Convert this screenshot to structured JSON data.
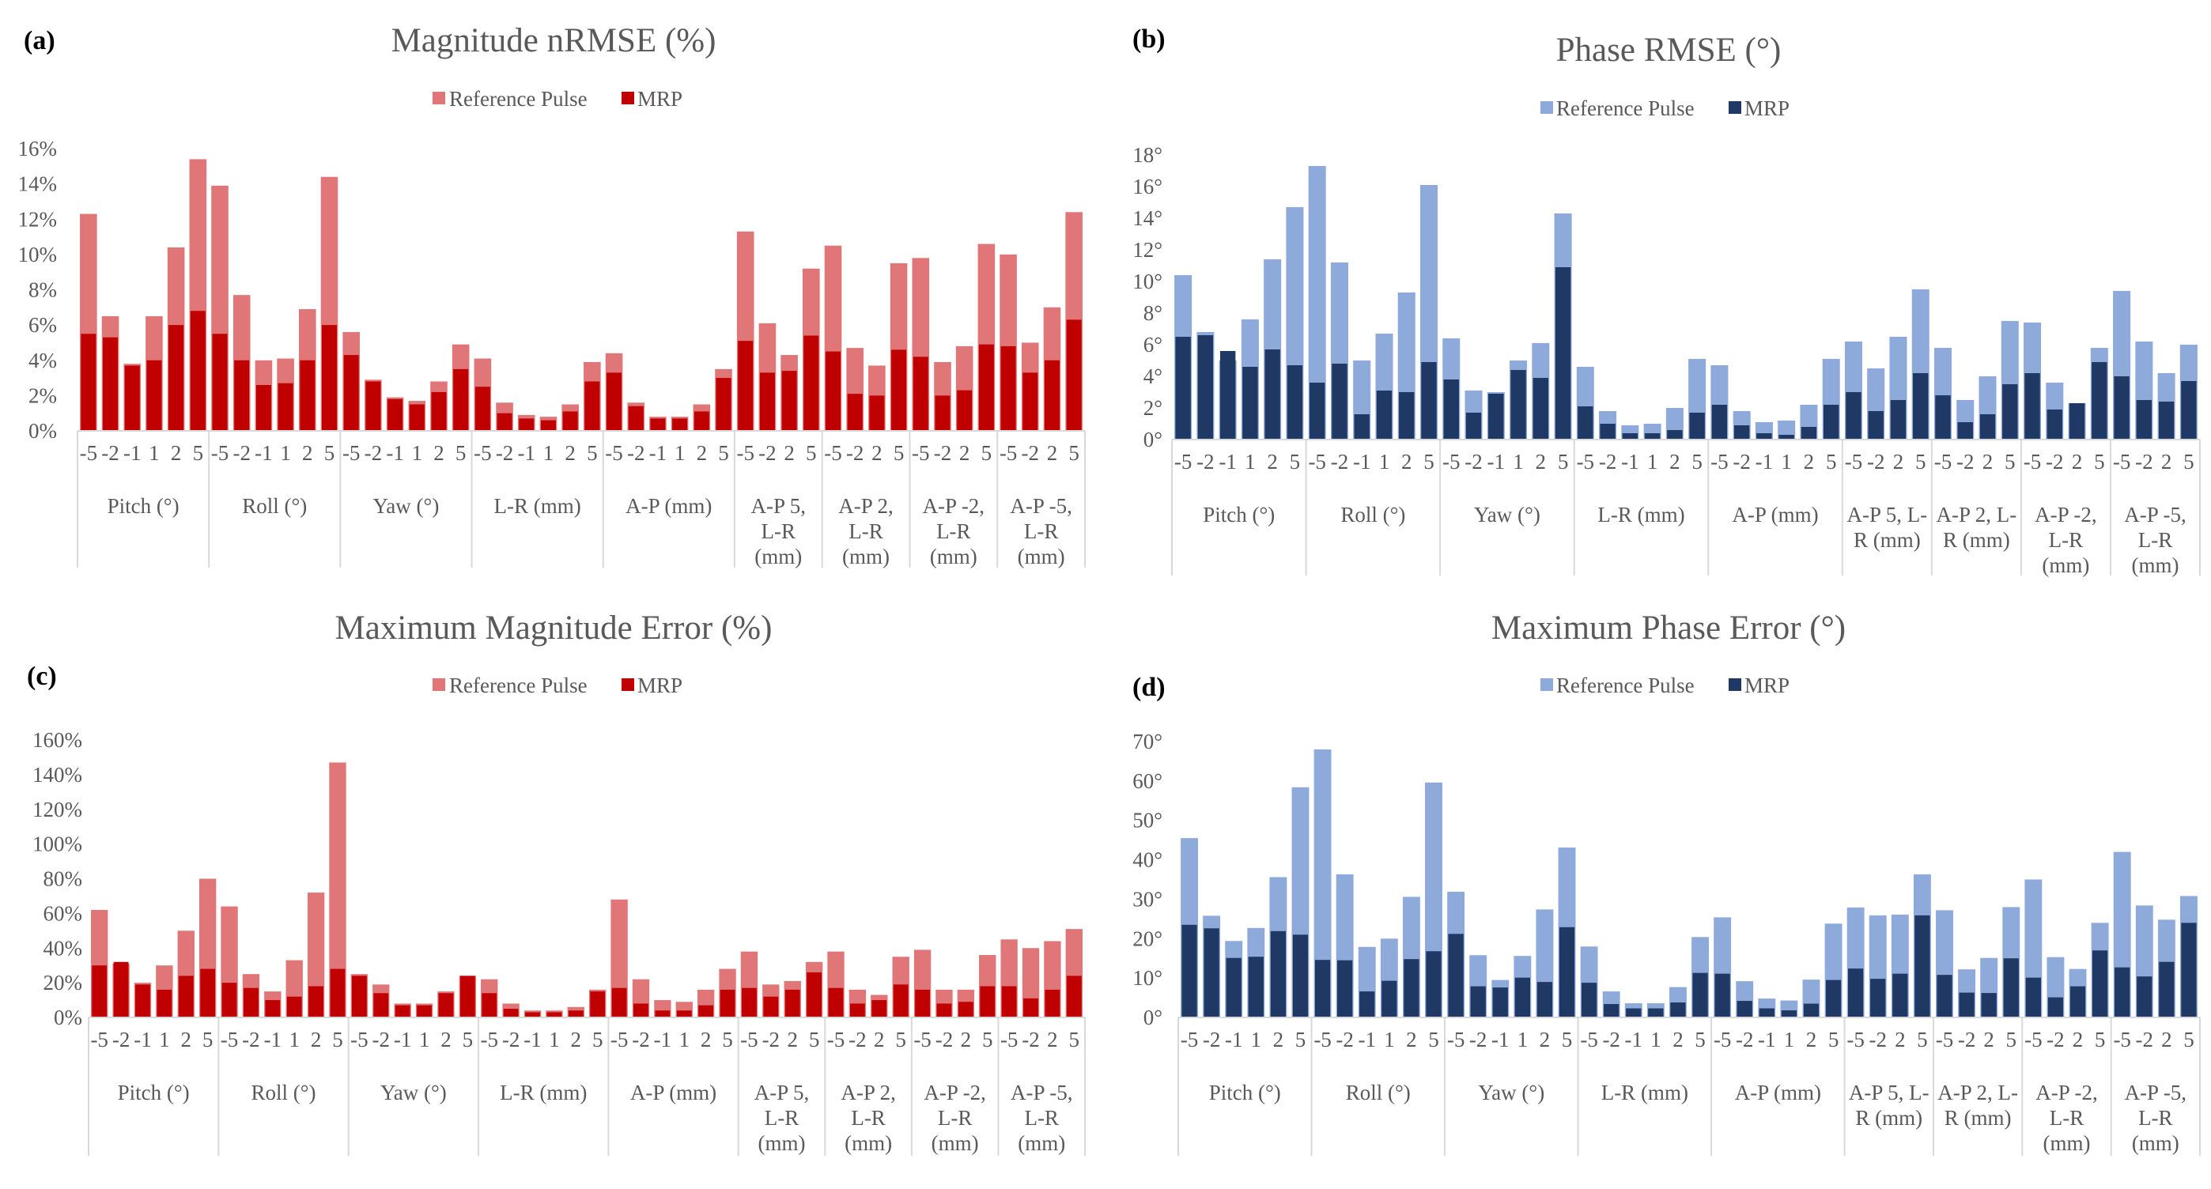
{
  "colors": {
    "red_light": "#e07678",
    "red_dark": "#c00000",
    "blue_light": "#8eaadb",
    "blue_dark": "#1f3864",
    "text": "#595959",
    "axis": "#d9d9d9"
  },
  "chart_data": [
    {
      "panel_label": "(a)",
      "type": "bar",
      "title": "Magnitude nRMSE (%)",
      "legend": [
        "Reference Pulse",
        "MRP"
      ],
      "legend_position": "top-center",
      "y_ticks": [
        "0%",
        "2%",
        "4%",
        "6%",
        "8%",
        "10%",
        "12%",
        "14%",
        "16%"
      ],
      "ylim": [
        0,
        16
      ],
      "groups": [
        {
          "label_lines": [
            "Pitch (°)"
          ],
          "categories": [
            "-5",
            "-2",
            "-1",
            "1",
            "2",
            "5"
          ]
        },
        {
          "label_lines": [
            "Roll (°)"
          ],
          "categories": [
            "-5",
            "-2",
            "-1",
            "1",
            "2",
            "5"
          ]
        },
        {
          "label_lines": [
            "Yaw (°)"
          ],
          "categories": [
            "-5",
            "-2",
            "-1",
            "1",
            "2",
            "5"
          ]
        },
        {
          "label_lines": [
            "L-R (mm)"
          ],
          "categories": [
            "-5",
            "-2",
            "-1",
            "1",
            "2",
            "5"
          ]
        },
        {
          "label_lines": [
            "A-P (mm)"
          ],
          "categories": [
            "-5",
            "-2",
            "-1",
            "1",
            "2",
            "5"
          ]
        },
        {
          "label_lines": [
            "A-P 5,",
            "L-R",
            "(mm)"
          ],
          "categories": [
            "-5",
            "-2",
            "2",
            "5"
          ]
        },
        {
          "label_lines": [
            "A-P 2,",
            "L-R",
            "(mm)"
          ],
          "categories": [
            "-5",
            "-2",
            "2",
            "5"
          ]
        },
        {
          "label_lines": [
            "A-P -2,",
            "L-R",
            "(mm)"
          ],
          "categories": [
            "-5",
            "-2",
            "2",
            "5"
          ]
        },
        {
          "label_lines": [
            "A-P -5,",
            "L-R",
            "(mm)"
          ],
          "categories": [
            "-5",
            "-2",
            "2",
            "5"
          ]
        }
      ],
      "series": [
        {
          "name": "Reference Pulse",
          "values": [
            12.3,
            6.5,
            3.8,
            6.5,
            10.4,
            15.4,
            13.9,
            7.7,
            4.0,
            4.1,
            6.9,
            14.4,
            5.6,
            2.9,
            1.9,
            1.7,
            2.8,
            4.9,
            4.1,
            1.6,
            0.9,
            0.8,
            1.5,
            3.9,
            4.4,
            1.6,
            0.8,
            0.8,
            1.5,
            3.5,
            11.3,
            6.1,
            4.3,
            9.2,
            10.5,
            4.7,
            3.7,
            9.5,
            9.8,
            3.9,
            4.8,
            10.6,
            10.0,
            5.0,
            7.0,
            12.4
          ]
        },
        {
          "name": "MRP",
          "values": [
            5.5,
            5.3,
            3.7,
            4.0,
            6.0,
            6.8,
            5.5,
            4.0,
            2.6,
            2.7,
            4.0,
            6.0,
            4.3,
            2.8,
            1.8,
            1.5,
            2.2,
            3.5,
            2.5,
            1.0,
            0.7,
            0.6,
            1.1,
            2.8,
            3.3,
            1.4,
            0.7,
            0.7,
            1.1,
            3.0,
            5.1,
            3.3,
            3.4,
            5.4,
            4.5,
            2.1,
            2.0,
            4.6,
            4.2,
            2.0,
            2.3,
            4.9,
            4.8,
            3.3,
            4.0,
            6.3
          ]
        }
      ]
    },
    {
      "panel_label": "(b)",
      "type": "bar",
      "title": "Phase RMSE (°)",
      "legend": [
        "Reference Pulse",
        "MRP"
      ],
      "legend_position": "top-center",
      "y_ticks": [
        "0°",
        "2°",
        "4°",
        "6°",
        "8°",
        "10°",
        "12°",
        "14°",
        "16°",
        "18°"
      ],
      "ylim": [
        0,
        18
      ],
      "groups": [
        {
          "label_lines": [
            "Pitch (°)"
          ],
          "categories": [
            "-5",
            "-2",
            "-1",
            "1",
            "2",
            "5"
          ]
        },
        {
          "label_lines": [
            "Roll (°)"
          ],
          "categories": [
            "-5",
            "-2",
            "-1",
            "1",
            "2",
            "5"
          ]
        },
        {
          "label_lines": [
            "Yaw (°)"
          ],
          "categories": [
            "-5",
            "-2",
            "-1",
            "1",
            "2",
            "5"
          ]
        },
        {
          "label_lines": [
            "L-R (mm)"
          ],
          "categories": [
            "-5",
            "-2",
            "-1",
            "1",
            "2",
            "5"
          ]
        },
        {
          "label_lines": [
            "A-P (mm)"
          ],
          "categories": [
            "-5",
            "-2",
            "-1",
            "1",
            "2",
            "5"
          ]
        },
        {
          "label_lines": [
            "A-P 5, L-",
            "R (mm)"
          ],
          "categories": [
            "-5",
            "-2",
            "2",
            "5"
          ]
        },
        {
          "label_lines": [
            "A-P 2, L-",
            "R (mm)"
          ],
          "categories": [
            "-5",
            "-2",
            "2",
            "5"
          ]
        },
        {
          "label_lines": [
            "A-P -2,",
            "L-R",
            "(mm)"
          ],
          "categories": [
            "-5",
            "-2",
            "2",
            "5"
          ]
        },
        {
          "label_lines": [
            "A-P -5,",
            "L-R",
            "(mm)"
          ],
          "categories": [
            "-5",
            "-2",
            "2",
            "5"
          ]
        }
      ],
      "series": [
        {
          "name": "Reference Pulse",
          "values": [
            10.4,
            6.8,
            5.0,
            7.6,
            11.4,
            14.7,
            17.3,
            11.2,
            5.0,
            6.7,
            9.3,
            16.1,
            6.4,
            3.1,
            3.0,
            5.0,
            6.1,
            14.3,
            4.6,
            1.8,
            0.9,
            1.0,
            2.0,
            5.1,
            4.7,
            1.8,
            1.1,
            1.2,
            2.2,
            5.1,
            6.2,
            4.5,
            6.5,
            9.5,
            5.8,
            2.5,
            4.0,
            7.5,
            7.4,
            3.6,
            2.3,
            5.8,
            9.4,
            6.2,
            4.2,
            6.0
          ]
        },
        {
          "name": "MRP",
          "values": [
            6.5,
            6.6,
            5.6,
            4.6,
            5.7,
            4.7,
            3.6,
            4.8,
            1.6,
            3.1,
            3.0,
            4.9,
            3.8,
            1.7,
            2.9,
            4.4,
            3.9,
            10.9,
            2.1,
            1.0,
            0.4,
            0.4,
            0.6,
            1.7,
            2.2,
            0.9,
            0.4,
            0.3,
            0.8,
            2.2,
            3.0,
            1.8,
            2.5,
            4.2,
            2.8,
            1.1,
            1.6,
            3.5,
            4.2,
            1.9,
            2.3,
            4.9,
            4.0,
            2.5,
            2.4,
            3.7
          ]
        }
      ]
    },
    {
      "panel_label": "(c)",
      "type": "bar",
      "title": "Maximum Magnitude Error (%)",
      "legend": [
        "Reference Pulse",
        "MRP"
      ],
      "legend_position": "top-center",
      "y_ticks": [
        "0%",
        "20%",
        "40%",
        "60%",
        "80%",
        "100%",
        "120%",
        "140%",
        "160%"
      ],
      "ylim": [
        0,
        160
      ],
      "groups": [
        {
          "label_lines": [
            "Pitch (°)"
          ],
          "categories": [
            "-5",
            "-2",
            "-1",
            "1",
            "2",
            "5"
          ]
        },
        {
          "label_lines": [
            "Roll (°)"
          ],
          "categories": [
            "-5",
            "-2",
            "-1",
            "1",
            "2",
            "5"
          ]
        },
        {
          "label_lines": [
            "Yaw (°)"
          ],
          "categories": [
            "-5",
            "-2",
            "-1",
            "1",
            "2",
            "5"
          ]
        },
        {
          "label_lines": [
            "L-R (mm)"
          ],
          "categories": [
            "-5",
            "-2",
            "-1",
            "1",
            "2",
            "5"
          ]
        },
        {
          "label_lines": [
            "A-P (mm)"
          ],
          "categories": [
            "-5",
            "-2",
            "-1",
            "1",
            "2",
            "5"
          ]
        },
        {
          "label_lines": [
            "A-P 5,",
            "L-R",
            "(mm)"
          ],
          "categories": [
            "-5",
            "-2",
            "2",
            "5"
          ]
        },
        {
          "label_lines": [
            "A-P 2,",
            "L-R",
            "(mm)"
          ],
          "categories": [
            "-5",
            "-2",
            "2",
            "5"
          ]
        },
        {
          "label_lines": [
            "A-P -2,",
            "L-R",
            "(mm)"
          ],
          "categories": [
            "-5",
            "-2",
            "2",
            "5"
          ]
        },
        {
          "label_lines": [
            "A-P -5,",
            "L-R",
            "(mm)"
          ],
          "categories": [
            "-5",
            "-2",
            "2",
            "5"
          ]
        }
      ],
      "series": [
        {
          "name": "Reference Pulse",
          "values": [
            62,
            31,
            20,
            30,
            50,
            80,
            64,
            25,
            15,
            33,
            72,
            147,
            25,
            19,
            8,
            8,
            15,
            24,
            22,
            8,
            4,
            4,
            6,
            16,
            68,
            22,
            10,
            9,
            16,
            28,
            38,
            19,
            21,
            32,
            38,
            16,
            13,
            35,
            39,
            16,
            16,
            36,
            45,
            40,
            44,
            51
          ]
        },
        {
          "name": "MRP",
          "values": [
            30,
            32,
            19,
            16,
            24,
            28,
            20,
            17,
            10,
            12,
            18,
            28,
            24,
            14,
            7,
            7,
            14,
            24,
            14,
            5,
            3,
            3,
            4,
            15,
            17,
            8,
            4,
            4,
            7,
            16,
            17,
            12,
            16,
            26,
            17,
            8,
            10,
            19,
            16,
            8,
            9,
            18,
            18,
            11,
            16,
            24
          ]
        }
      ]
    },
    {
      "panel_label": "(d)",
      "type": "bar",
      "title": "Maximum Phase Error (°)",
      "legend": [
        "Reference Pulse",
        "MRP"
      ],
      "legend_position": "top-center",
      "y_ticks": [
        "0°",
        "10°",
        "20°",
        "30°",
        "40°",
        "50°",
        "60°",
        "70°"
      ],
      "ylim": [
        0,
        70
      ],
      "groups": [
        {
          "label_lines": [
            "Pitch (°)"
          ],
          "categories": [
            "-5",
            "-2",
            "-1",
            "1",
            "2",
            "5"
          ]
        },
        {
          "label_lines": [
            "Roll (°)"
          ],
          "categories": [
            "-5",
            "-2",
            "-1",
            "1",
            "2",
            "5"
          ]
        },
        {
          "label_lines": [
            "Yaw (°)"
          ],
          "categories": [
            "-5",
            "-2",
            "-1",
            "1",
            "2",
            "5"
          ]
        },
        {
          "label_lines": [
            "L-R (mm)"
          ],
          "categories": [
            "-5",
            "-2",
            "-1",
            "1",
            "2",
            "5"
          ]
        },
        {
          "label_lines": [
            "A-P (mm)"
          ],
          "categories": [
            "-5",
            "-2",
            "-1",
            "1",
            "2",
            "5"
          ]
        },
        {
          "label_lines": [
            "A-P 5, L-",
            "R (mm)"
          ],
          "categories": [
            "-5",
            "-2",
            "2",
            "5"
          ]
        },
        {
          "label_lines": [
            "A-P 2, L-",
            "R (mm)"
          ],
          "categories": [
            "-5",
            "-2",
            "2",
            "5"
          ]
        },
        {
          "label_lines": [
            "A-P -2,",
            "L-R",
            "(mm)"
          ],
          "categories": [
            "-5",
            "-2",
            "2",
            "5"
          ]
        },
        {
          "label_lines": [
            "A-P -5,",
            "L-R",
            "(mm)"
          ],
          "categories": [
            "-5",
            "-2",
            "2",
            "5"
          ]
        }
      ],
      "series": [
        {
          "name": "Reference Pulse",
          "values": [
            45.5,
            25.8,
            19.4,
            22.7,
            35.6,
            58.4,
            68.0,
            36.3,
            17.9,
            20.0,
            30.6,
            59.6,
            31.9,
            15.8,
            9.5,
            15.6,
            27.4,
            43.1,
            18.0,
            6.6,
            3.6,
            3.6,
            7.7,
            20.4,
            25.4,
            9.2,
            4.8,
            4.3,
            9.6,
            23.8,
            27.9,
            25.9,
            26.1,
            36.3,
            27.2,
            12.2,
            15.1,
            28.0,
            35.0,
            15.3,
            12.3,
            24.0,
            42.0,
            28.4,
            24.8,
            30.8
          ]
        },
        {
          "name": "MRP",
          "values": [
            23.5,
            22.6,
            15.1,
            15.4,
            21.9,
            21.0,
            14.6,
            14.5,
            6.6,
            9.3,
            14.8,
            16.8,
            21.2,
            7.9,
            7.6,
            10.1,
            9.0,
            22.9,
            8.8,
            3.4,
            2.3,
            2.3,
            3.8,
            11.3,
            11.1,
            4.2,
            2.3,
            1.8,
            3.5,
            9.5,
            12.4,
            9.8,
            11.1,
            25.9,
            10.8,
            6.3,
            6.2,
            15.0,
            10.1,
            5.1,
            7.9,
            17.0,
            12.7,
            10.4,
            14.1,
            24.0
          ]
        }
      ]
    }
  ]
}
